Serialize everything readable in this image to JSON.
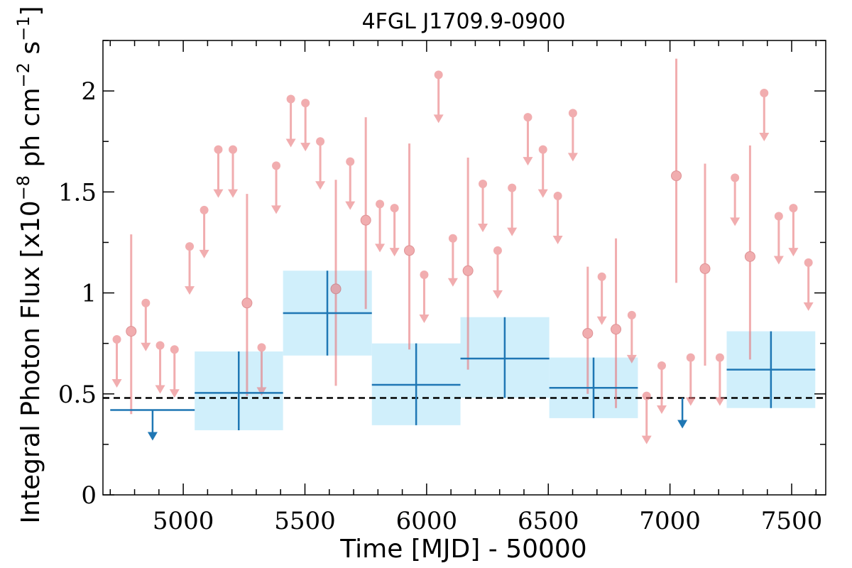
{
  "chart_data": {
    "type": "scatter",
    "title": "4FGL J1709.9-0900",
    "xlabel": "Time [MJD] - 50000",
    "ylabel_base": "Integral Photon Flux [x10",
    "ylabel_exp1": "−8",
    "ylabel_mid": " ph cm",
    "ylabel_exp2": "−2",
    "ylabel_mid2": " s",
    "ylabel_exp3": "−1",
    "ylabel_end": "]",
    "xlim": [
      4670,
      7640
    ],
    "ylim": [
      0,
      2.25
    ],
    "xticks": [
      5000,
      5500,
      6000,
      6500,
      7000,
      7500
    ],
    "yticks": [
      0,
      0.5,
      1,
      1.5,
      2
    ],
    "ytick_labels": [
      "0",
      "0.5",
      "1",
      "1.5",
      "2"
    ],
    "reference_line": {
      "y": 0.48,
      "style": "dashed",
      "color": "#000000"
    },
    "colors": {
      "fine": "#e8777b",
      "coarse": "#1f77b4",
      "band": "#cdeefb"
    },
    "fine_bins": {
      "name": "",
      "detections": [
        {
          "x": 4786,
          "y": 0.81,
          "ylo": 0.4,
          "yhi": 1.29
        },
        {
          "x": 5262,
          "y": 0.95,
          "ylo": 0.49,
          "yhi": 1.49
        },
        {
          "x": 5627,
          "y": 1.02,
          "ylo": 0.54,
          "yhi": 1.56
        },
        {
          "x": 5750,
          "y": 1.36,
          "ylo": 0.92,
          "yhi": 1.87
        },
        {
          "x": 5929,
          "y": 1.21,
          "ylo": 0.72,
          "yhi": 1.74
        },
        {
          "x": 6170,
          "y": 1.11,
          "ylo": 0.62,
          "yhi": 1.67
        },
        {
          "x": 6662,
          "y": 0.8,
          "ylo": 0.5,
          "yhi": 1.13
        },
        {
          "x": 6778,
          "y": 0.82,
          "ylo": 0.43,
          "yhi": 1.27
        },
        {
          "x": 7026,
          "y": 1.58,
          "ylo": 1.05,
          "yhi": 2.16
        },
        {
          "x": 7144,
          "y": 1.12,
          "ylo": 0.64,
          "yhi": 1.64
        },
        {
          "x": 7329,
          "y": 1.18,
          "ylo": 0.67,
          "yhi": 1.73
        }
      ],
      "upper_limits": [
        {
          "x": 4727,
          "y": 0.77
        },
        {
          "x": 4846,
          "y": 0.95
        },
        {
          "x": 4905,
          "y": 0.74
        },
        {
          "x": 4964,
          "y": 0.72
        },
        {
          "x": 5026,
          "y": 1.23
        },
        {
          "x": 5086,
          "y": 1.41
        },
        {
          "x": 5144,
          "y": 1.71
        },
        {
          "x": 5204,
          "y": 1.71
        },
        {
          "x": 5322,
          "y": 0.73
        },
        {
          "x": 5382,
          "y": 1.63
        },
        {
          "x": 5442,
          "y": 1.96
        },
        {
          "x": 5502,
          "y": 1.94
        },
        {
          "x": 5563,
          "y": 1.75
        },
        {
          "x": 5686,
          "y": 1.65
        },
        {
          "x": 5808,
          "y": 1.44
        },
        {
          "x": 5868,
          "y": 1.42
        },
        {
          "x": 5990,
          "y": 1.09
        },
        {
          "x": 6049,
          "y": 2.08
        },
        {
          "x": 6108,
          "y": 1.27
        },
        {
          "x": 6231,
          "y": 1.54
        },
        {
          "x": 6292,
          "y": 1.21
        },
        {
          "x": 6351,
          "y": 1.52
        },
        {
          "x": 6416,
          "y": 1.87
        },
        {
          "x": 6478,
          "y": 1.71
        },
        {
          "x": 6539,
          "y": 1.48
        },
        {
          "x": 6601,
          "y": 1.89
        },
        {
          "x": 6720,
          "y": 1.08
        },
        {
          "x": 6843,
          "y": 0.89
        },
        {
          "x": 6904,
          "y": 0.49
        },
        {
          "x": 6966,
          "y": 0.64
        },
        {
          "x": 7085,
          "y": 0.68
        },
        {
          "x": 7205,
          "y": 0.68
        },
        {
          "x": 7267,
          "y": 1.57
        },
        {
          "x": 7387,
          "y": 1.99
        },
        {
          "x": 7447,
          "y": 1.38
        },
        {
          "x": 7507,
          "y": 1.42
        },
        {
          "x": 7569,
          "y": 1.15
        }
      ]
    },
    "coarse_bins": {
      "name": "",
      "detections": [
        {
          "x0": 5047,
          "x1": 5410,
          "xc": 5228,
          "y": 0.505,
          "ylo": 0.32,
          "yhi": 0.71
        },
        {
          "x0": 5410,
          "x1": 5775,
          "xc": 5592,
          "y": 0.9,
          "ylo": 0.69,
          "yhi": 1.11
        },
        {
          "x0": 5775,
          "x1": 6139,
          "xc": 5957,
          "y": 0.545,
          "ylo": 0.345,
          "yhi": 0.75
        },
        {
          "x0": 6139,
          "x1": 6504,
          "xc": 6321,
          "y": 0.675,
          "ylo": 0.48,
          "yhi": 0.88
        },
        {
          "x0": 6504,
          "x1": 6868,
          "xc": 6686,
          "y": 0.53,
          "ylo": 0.38,
          "yhi": 0.68
        },
        {
          "x0": 7233,
          "x1": 7597,
          "xc": 7415,
          "y": 0.62,
          "ylo": 0.43,
          "yhi": 0.81
        }
      ],
      "upper_limits": [
        {
          "x0": 4700,
          "x1": 5047,
          "xc": 4874,
          "y": 0.42
        },
        {
          "x0": 7000,
          "x1": 7000,
          "xc": 7051,
          "y": 0.48
        }
      ]
    }
  }
}
